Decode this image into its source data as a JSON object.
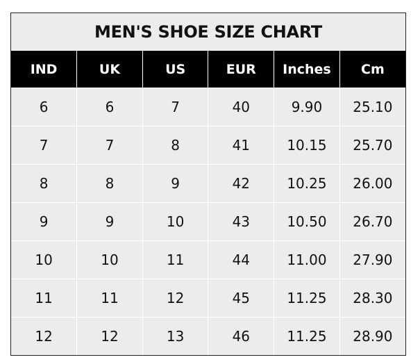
{
  "chart_data": {
    "type": "table",
    "title": "MEN'S SHOE SIZE CHART",
    "columns": [
      "IND",
      "UK",
      "US",
      "EUR",
      "Inches",
      "Cm"
    ],
    "rows": [
      [
        "6",
        "6",
        "7",
        "40",
        "9.90",
        "25.10"
      ],
      [
        "7",
        "7",
        "8",
        "41",
        "10.15",
        "25.70"
      ],
      [
        "8",
        "8",
        "9",
        "42",
        "10.25",
        "26.00"
      ],
      [
        "9",
        "9",
        "10",
        "43",
        "10.50",
        "26.70"
      ],
      [
        "10",
        "10",
        "11",
        "44",
        "11.00",
        "27.90"
      ],
      [
        "11",
        "11",
        "12",
        "45",
        "11.25",
        "28.30"
      ],
      [
        "12",
        "12",
        "13",
        "46",
        "11.25",
        "28.90"
      ]
    ],
    "colors": {
      "header_bg": "#000000",
      "header_text": "#ffffff",
      "cell_bg": "#ececec",
      "grid": "#ffffff"
    }
  }
}
